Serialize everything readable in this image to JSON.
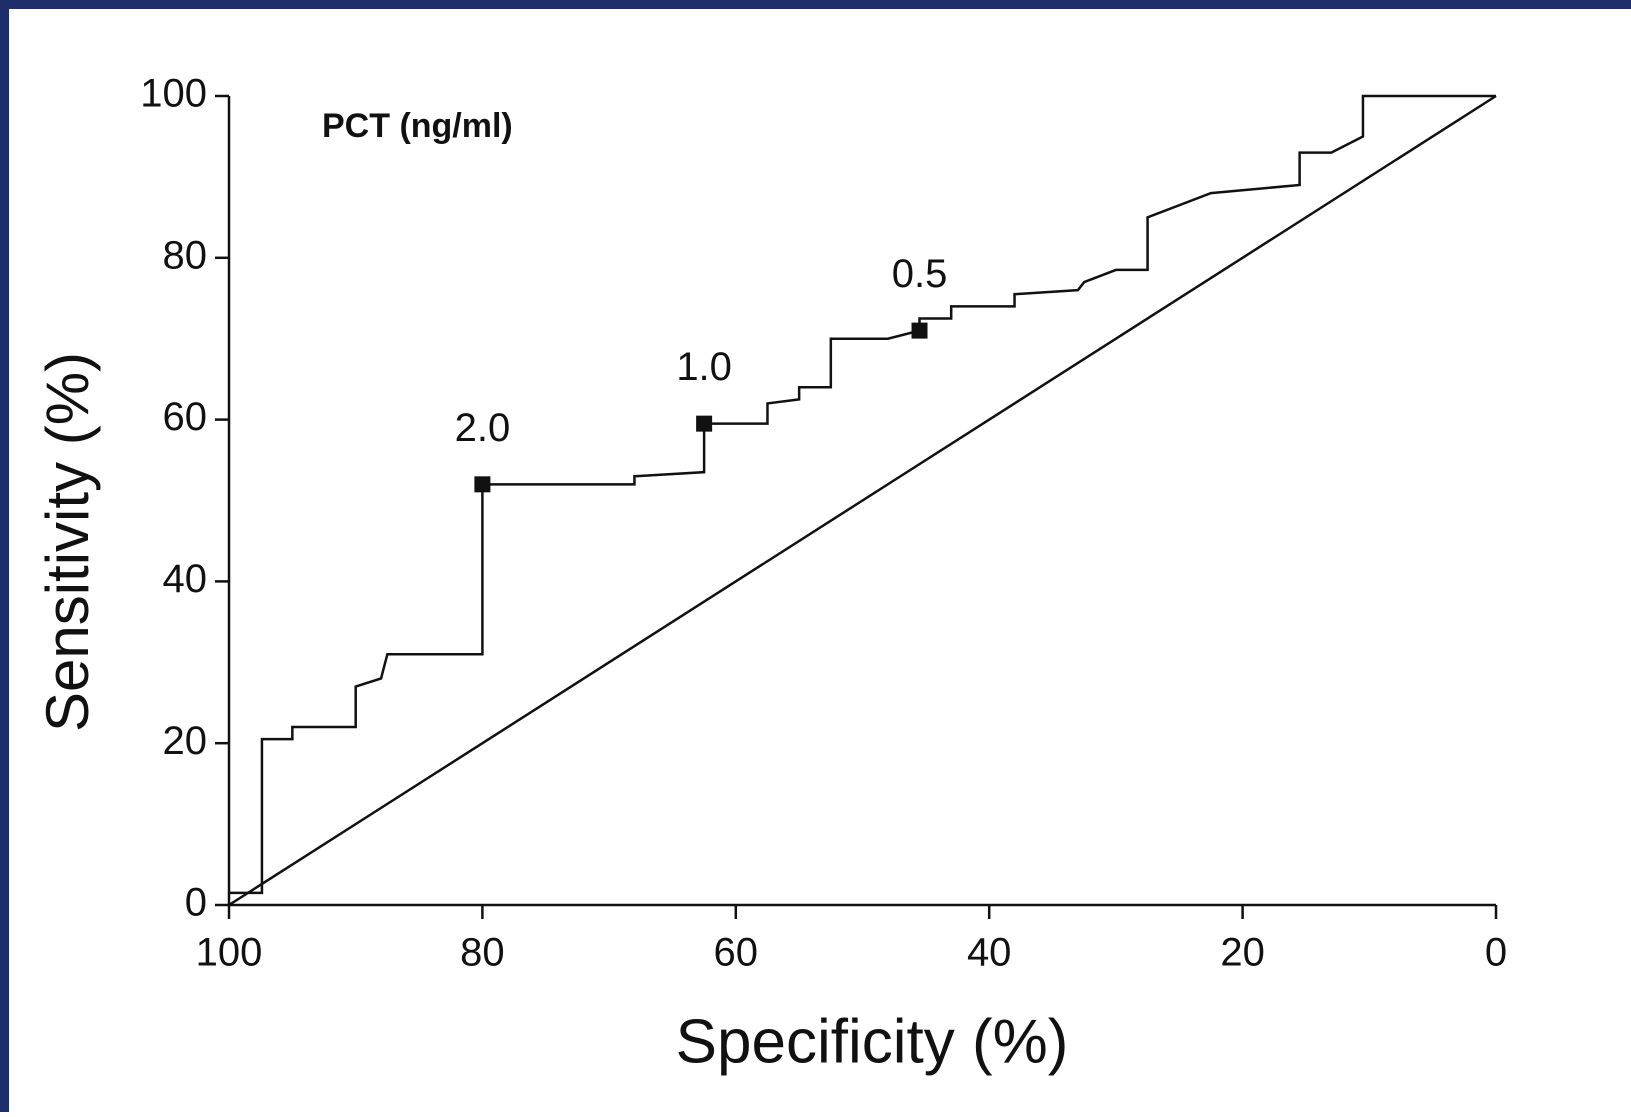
{
  "chart_data": {
    "type": "line",
    "title": "PCT (ng/ml)",
    "xlabel": "Specificity (%)",
    "ylabel": "Sensitivity (%)",
    "xlim": [
      100,
      0
    ],
    "ylim": [
      0,
      100
    ],
    "xticks": [
      100,
      80,
      60,
      40,
      20,
      0
    ],
    "yticks": [
      0,
      20,
      40,
      60,
      80,
      100
    ],
    "series": [
      {
        "color": "#111111",
        "x": [
          100,
          97.4,
          97.4,
          95,
          95,
          90,
          90,
          88,
          87.5,
          80,
          80,
          68,
          68,
          62.5,
          62.5,
          57.5,
          57.5,
          55,
          55,
          52.5,
          52.5,
          48,
          45.5,
          45.5,
          43,
          43,
          38,
          38,
          33,
          32.5,
          30,
          27.5,
          27.5,
          22.5,
          15.5,
          15.5,
          13,
          10.5,
          10.5,
          0
        ],
        "values": [
          1.5,
          1.5,
          20.5,
          20.5,
          22,
          22,
          27,
          28,
          31,
          31,
          52,
          52,
          53,
          53.5,
          59.5,
          59.5,
          62,
          62.5,
          64,
          64,
          70,
          70,
          71,
          72.5,
          72.5,
          74,
          74,
          75.5,
          76,
          77,
          78.5,
          78.5,
          85,
          88,
          89,
          93,
          93,
          95,
          100,
          100
        ]
      },
      {
        "color": "#111111",
        "x": [
          100,
          0
        ],
        "values": [
          0,
          100
        ]
      }
    ],
    "points": [
      {
        "x": 80,
        "y": 52,
        "label": "2.0"
      },
      {
        "x": 62.5,
        "y": 59.5,
        "label": "1.0"
      },
      {
        "x": 45.5,
        "y": 71,
        "label": "0.5"
      }
    ]
  }
}
